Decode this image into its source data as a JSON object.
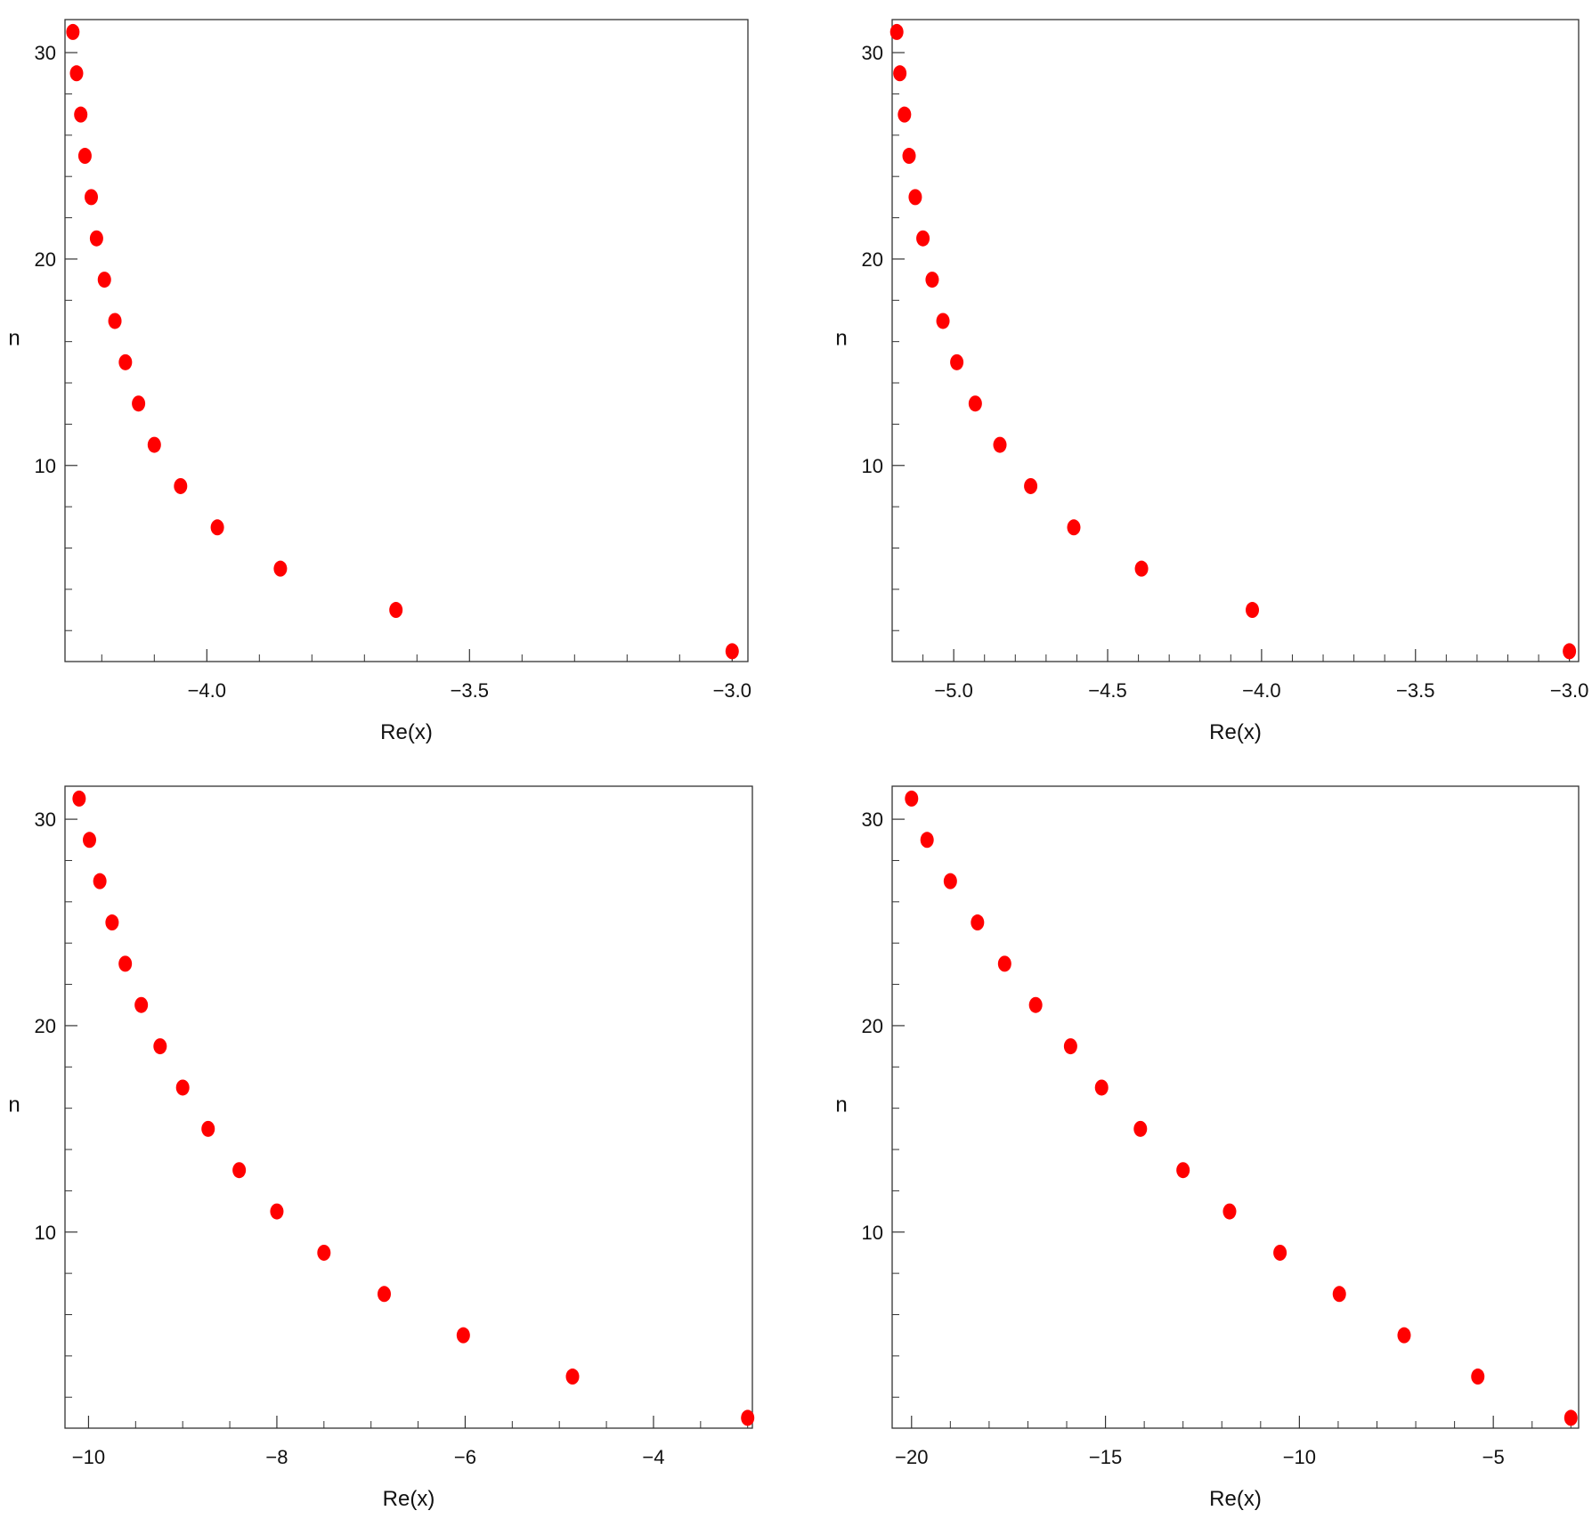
{
  "chart_data": [
    {
      "type": "scatter",
      "xlabel": "Re(x)",
      "ylabel": "n",
      "xlim": [
        -4.27,
        -2.97
      ],
      "ylim": [
        0.5,
        31.6
      ],
      "x_major_ticks": [
        -4.0,
        -3.5,
        -3.0
      ],
      "x_tick_labels": [
        "−4.0",
        "−3.5",
        "−3.0"
      ],
      "x_minor_step": 0.1,
      "y_major_ticks": [
        10,
        20,
        30
      ],
      "y_tick_labels": [
        "10",
        "20",
        "30"
      ],
      "y_minor_step": 2,
      "marker_color": "#ff0000",
      "points": {
        "x": [
          -3.0,
          -3.64,
          -3.86,
          -3.98,
          -4.05,
          -4.1,
          -4.13,
          -4.155,
          -4.175,
          -4.195,
          -4.21,
          -4.22,
          -4.232,
          -4.24,
          -4.248,
          -4.255
        ],
        "y": [
          1,
          3,
          5,
          7,
          9,
          11,
          13,
          15,
          17,
          19,
          21,
          23,
          25,
          27,
          29,
          31
        ]
      }
    },
    {
      "type": "scatter",
      "xlabel": "Re(x)",
      "ylabel": "n",
      "xlim": [
        -5.2,
        -2.97
      ],
      "ylim": [
        0.5,
        31.6
      ],
      "x_major_ticks": [
        -5.0,
        -4.5,
        -4.0,
        -3.5,
        -3.0
      ],
      "x_tick_labels": [
        "−5.0",
        "−4.5",
        "−4.0",
        "−3.5",
        "−3.0"
      ],
      "x_minor_step": 0.1,
      "y_major_ticks": [
        10,
        20,
        30
      ],
      "y_tick_labels": [
        "10",
        "20",
        "30"
      ],
      "y_minor_step": 2,
      "marker_color": "#ff0000",
      "points": {
        "x": [
          -3.0,
          -4.03,
          -4.39,
          -4.61,
          -4.75,
          -4.85,
          -4.93,
          -4.99,
          -5.035,
          -5.07,
          -5.1,
          -5.125,
          -5.145,
          -5.16,
          -5.175,
          -5.185
        ],
        "y": [
          1,
          3,
          5,
          7,
          9,
          11,
          13,
          15,
          17,
          19,
          21,
          23,
          25,
          27,
          29,
          31
        ]
      }
    },
    {
      "type": "scatter",
      "xlabel": "Re(x)",
      "ylabel": "n",
      "xlim": [
        -10.25,
        -2.95
      ],
      "ylim": [
        0.5,
        31.6
      ],
      "x_major_ticks": [
        -10,
        -8,
        -6,
        -4
      ],
      "x_tick_labels": [
        "−10",
        "−8",
        "−6",
        "−4"
      ],
      "x_minor_step": 0.5,
      "y_major_ticks": [
        10,
        20,
        30
      ],
      "y_tick_labels": [
        "10",
        "20",
        "30"
      ],
      "y_minor_step": 2,
      "marker_color": "#ff0000",
      "points": {
        "x": [
          -3.0,
          -4.86,
          -6.02,
          -6.86,
          -7.5,
          -8.0,
          -8.4,
          -8.73,
          -9.0,
          -9.24,
          -9.44,
          -9.61,
          -9.75,
          -9.88,
          -9.99,
          -10.1
        ],
        "y": [
          1,
          3,
          5,
          7,
          9,
          11,
          13,
          15,
          17,
          19,
          21,
          23,
          25,
          27,
          29,
          31
        ]
      }
    },
    {
      "type": "scatter",
      "xlabel": "Re(x)",
      "ylabel": "n",
      "xlim": [
        -20.5,
        -2.8
      ],
      "ylim": [
        0.5,
        31.6
      ],
      "x_major_ticks": [
        -20,
        -15,
        -10,
        -5
      ],
      "x_tick_labels": [
        "−20",
        "−15",
        "−10",
        "−5"
      ],
      "x_minor_step": 1,
      "y_major_ticks": [
        10,
        20,
        30
      ],
      "y_tick_labels": [
        "10",
        "20",
        "30"
      ],
      "y_minor_step": 2,
      "marker_color": "#ff0000",
      "points": {
        "x": [
          -3.0,
          -5.4,
          -7.3,
          -8.97,
          -10.5,
          -11.8,
          -13.0,
          -14.1,
          -15.1,
          -15.9,
          -16.8,
          -17.6,
          -18.3,
          -19.0,
          -19.6,
          -20.0
        ],
        "y": [
          1,
          3,
          5,
          7,
          9,
          11,
          13,
          15,
          17,
          19,
          21,
          23,
          25,
          27,
          29,
          31
        ]
      }
    }
  ]
}
